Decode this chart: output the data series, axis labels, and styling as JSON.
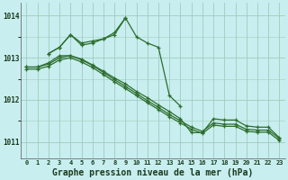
{
  "background_color": "#c8eef0",
  "grid_color": "#a0ccbb",
  "line_color": "#2d6e2d",
  "marker_color": "#2d6e2d",
  "xlabel": "Graphe pression niveau de la mer (hPa)",
  "xlabel_fontsize": 7.0,
  "ylabel_ticks": [
    1011,
    1012,
    1013,
    1014
  ],
  "xlim": [
    -0.5,
    23.5
  ],
  "ylim": [
    1010.6,
    1014.3
  ],
  "series": [
    {
      "x": [
        2,
        3,
        4,
        5,
        6,
        7,
        8,
        9,
        10,
        11,
        12,
        13,
        14
      ],
      "y": [
        1013.1,
        1013.25,
        1013.55,
        1013.3,
        1013.35,
        1013.45,
        1013.55,
        1013.95,
        1013.5,
        1013.35,
        1013.25,
        1012.1,
        1011.85
      ]
    },
    {
      "x": [
        2,
        3,
        4,
        5,
        6,
        7,
        8,
        9
      ],
      "y": [
        1013.1,
        1013.25,
        1013.55,
        1013.35,
        1013.4,
        1013.45,
        1013.6,
        1013.95
      ]
    },
    {
      "x": [
        0,
        1,
        2,
        3,
        4,
        5,
        6,
        7,
        8,
        9,
        10,
        11,
        12,
        13,
        14,
        15,
        16,
        17,
        18,
        19,
        20,
        21,
        22,
        23
      ],
      "y": [
        1012.78,
        1012.78,
        1012.85,
        1013.0,
        1013.05,
        1012.95,
        1012.82,
        1012.65,
        1012.48,
        1012.32,
        1012.15,
        1011.98,
        1011.82,
        1011.65,
        1011.5,
        1011.35,
        1011.25,
        1011.45,
        1011.42,
        1011.42,
        1011.3,
        1011.28,
        1011.28,
        1011.08
      ]
    },
    {
      "x": [
        0,
        1,
        2,
        3,
        4,
        5,
        6,
        7,
        8,
        9,
        10,
        11,
        12,
        13,
        14,
        15,
        16,
        17,
        18,
        19,
        20,
        21,
        22,
        23
      ],
      "y": [
        1012.73,
        1012.73,
        1012.8,
        1012.95,
        1013.0,
        1012.9,
        1012.77,
        1012.6,
        1012.43,
        1012.27,
        1012.1,
        1011.93,
        1011.77,
        1011.6,
        1011.45,
        1011.3,
        1011.2,
        1011.4,
        1011.37,
        1011.37,
        1011.25,
        1011.23,
        1011.23,
        1011.03
      ]
    },
    {
      "x": [
        0,
        1,
        2,
        3,
        4,
        5,
        6,
        7,
        8,
        9,
        10,
        11,
        12,
        13,
        14,
        15,
        16,
        17,
        18,
        19,
        20,
        21,
        22,
        23
      ],
      "y": [
        1012.78,
        1012.78,
        1012.88,
        1013.05,
        1013.05,
        1012.97,
        1012.83,
        1012.68,
        1012.52,
        1012.38,
        1012.2,
        1012.05,
        1011.88,
        1011.72,
        1011.55,
        1011.22,
        1011.22,
        1011.55,
        1011.52,
        1011.52,
        1011.38,
        1011.35,
        1011.35,
        1011.1
      ]
    }
  ],
  "xtick_labels": [
    "0",
    "1",
    "2",
    "3",
    "4",
    "5",
    "6",
    "7",
    "8",
    "9",
    "10",
    "11",
    "12",
    "13",
    "14",
    "15",
    "16",
    "17",
    "18",
    "19",
    "20",
    "21",
    "22",
    "23"
  ]
}
